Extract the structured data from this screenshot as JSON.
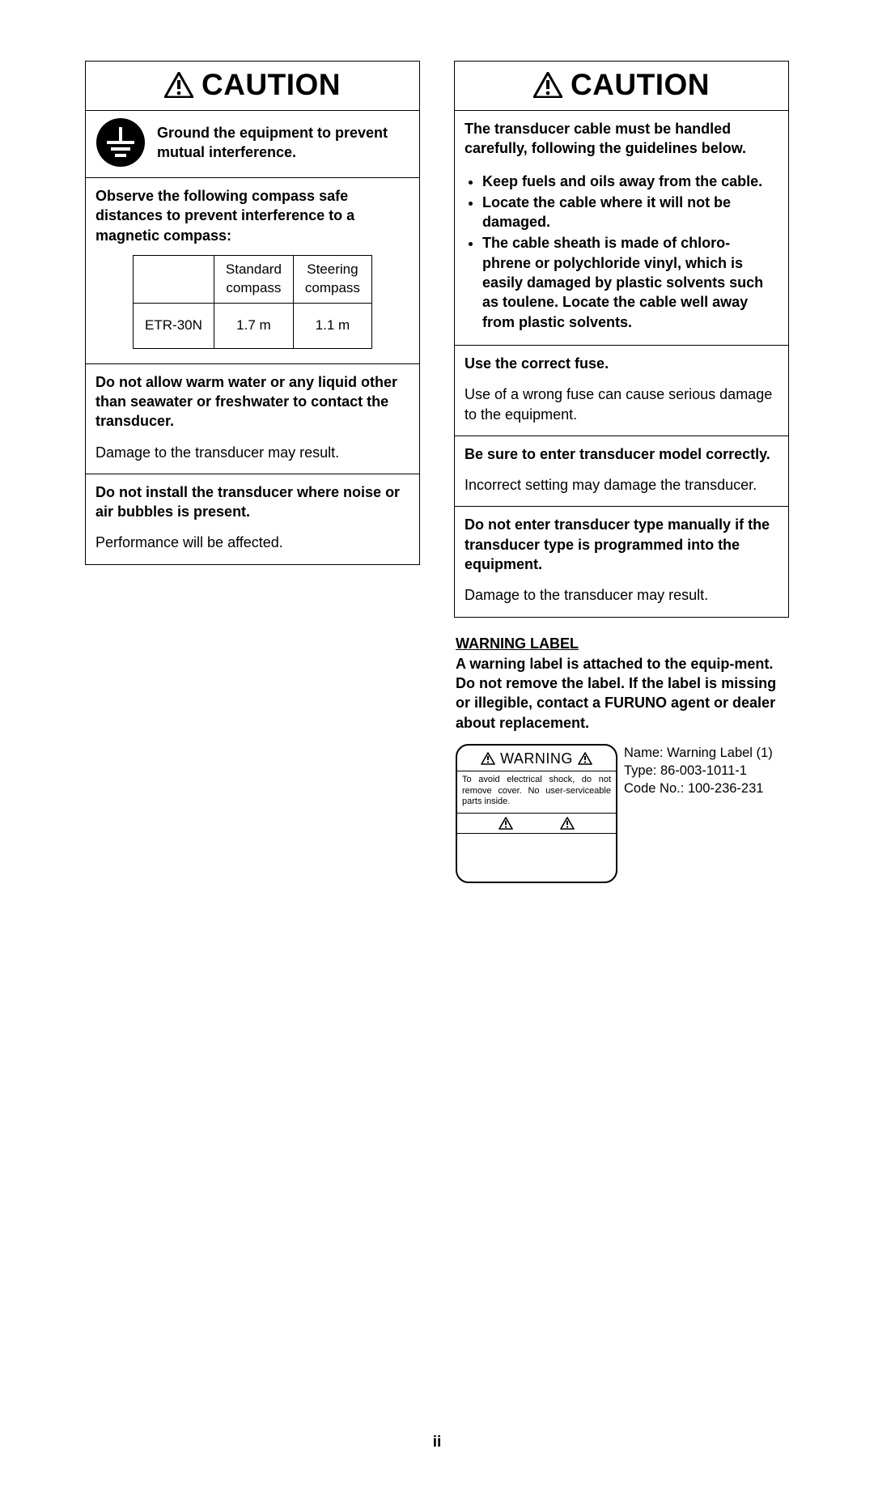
{
  "caution_title": "CAUTION",
  "left": {
    "ground_text": "Ground the equipment to prevent mutual interference.",
    "compass_intro": "Observe the following compass safe distances to prevent interference to a magnetic compass:",
    "table": {
      "headers": [
        "",
        "Standard compass",
        "Steering compass"
      ],
      "row": [
        "ETR-30N",
        "1.7 m",
        "1.1 m"
      ]
    },
    "warm_water_bold": "Do not allow warm water or any liquid other than seawater or freshwater to contact the transducer.",
    "warm_water_plain": "Damage to the transducer may result.",
    "noise_bold": "Do not install the transducer where noise or air bubbles is present.",
    "noise_plain": "Performance will be affected."
  },
  "right": {
    "cable_intro": "The transducer cable must be handled carefully, following the guidelines below.",
    "bullets": [
      "Keep fuels and oils away from the cable.",
      "Locate the cable where it will not be damaged.",
      "The cable sheath is made of chloro-phrene or polychloride vinyl, which is easily damaged by plastic solvents such as toulene. Locate the cable well away from plastic solvents."
    ],
    "fuse_bold": "Use the correct fuse.",
    "fuse_plain": "Use of a wrong fuse can cause serious damage to the equipment.",
    "model_bold": "Be sure to enter transducer model correctly.",
    "model_plain": "Incorrect setting may damage the transducer.",
    "type_bold": "Do not enter transducer type manually if the transducer type is programmed into the equipment.",
    "type_plain": "Damage to the transducer may result."
  },
  "warning_label": {
    "heading": "WARNING LABEL",
    "text": "A warning label is attached to the equip-ment. Do not remove the label. If the label is missing or illegible, contact a FURUNO agent or dealer about replacement.",
    "graphic_title": "WARNING",
    "graphic_text": "To avoid electrical shock, do not remove cover. No user-serviceable parts inside.",
    "info_name": "Name: Warning Label (1)",
    "info_type": "Type: 86-003-1011-1",
    "info_code": "Code No.: 100-236-231"
  },
  "page_number": "ii"
}
